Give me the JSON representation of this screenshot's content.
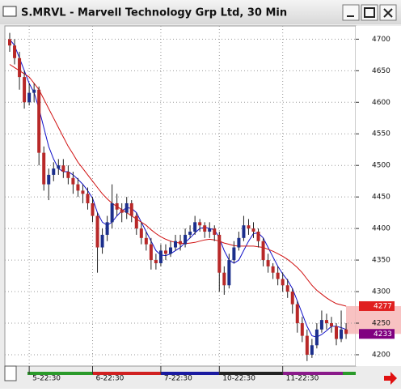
{
  "chart_data": {
    "type": "candlestick",
    "title": "S.MRVL - Marvell Technology Grp Ltd, 30 Min",
    "categories": [
      null,
      null,
      null,
      null,
      "5-22:30",
      null,
      null,
      null,
      null,
      null,
      null,
      null,
      null,
      null,
      null,
      null,
      null,
      "6-22:30",
      null,
      null,
      null,
      null,
      null,
      null,
      null,
      null,
      null,
      null,
      null,
      null,
      null,
      "7-22:30",
      null,
      null,
      null,
      null,
      null,
      null,
      null,
      null,
      null,
      null,
      null,
      "10-22:30",
      null,
      null,
      null,
      null,
      null,
      null,
      null,
      null,
      null,
      null,
      null,
      null,
      "11-22:30",
      null,
      null,
      null,
      null,
      null,
      null,
      null,
      null,
      null,
      null,
      null,
      null,
      null
    ],
    "open": [
      4700,
      4690,
      4670,
      4640,
      4600,
      4615,
      4620,
      4520,
      4470,
      4485,
      4495,
      4500,
      4490,
      4480,
      4470,
      4460,
      4455,
      4440,
      4420,
      4370,
      4390,
      4410,
      4440,
      4430,
      4425,
      4440,
      4420,
      4400,
      4385,
      4375,
      4350,
      4345,
      4365,
      4360,
      4370,
      4380,
      4375,
      4390,
      4395,
      4410,
      4405,
      4395,
      4400,
      4390,
      4330,
      4310,
      4350,
      4370,
      4385,
      4405,
      4400,
      4395,
      4380,
      4350,
      4340,
      4330,
      4320,
      4310,
      4300,
      4280,
      4250,
      4230,
      4200,
      4215,
      4240,
      4255,
      4250,
      4245,
      4225,
      4240
    ],
    "high": [
      4710,
      4700,
      4680,
      4650,
      4630,
      4630,
      4625,
      4530,
      4495,
      4505,
      4510,
      4510,
      4500,
      4490,
      4480,
      4470,
      4465,
      4450,
      4425,
      4400,
      4420,
      4470,
      4455,
      4440,
      4450,
      4445,
      4425,
      4410,
      4395,
      4385,
      4360,
      4375,
      4375,
      4380,
      4390,
      4390,
      4400,
      4405,
      4420,
      4415,
      4410,
      4410,
      4405,
      4395,
      4340,
      4360,
      4380,
      4395,
      4420,
      4415,
      4410,
      4400,
      4385,
      4360,
      4345,
      4340,
      4330,
      4320,
      4305,
      4285,
      4260,
      4240,
      4225,
      4250,
      4270,
      4265,
      4260,
      4250,
      4270,
      4250
    ],
    "low": [
      4680,
      4660,
      4620,
      4590,
      4595,
      4600,
      4500,
      4460,
      4445,
      4475,
      4485,
      4480,
      4470,
      4455,
      4450,
      4440,
      4430,
      4410,
      4330,
      4360,
      4380,
      4400,
      4420,
      4410,
      4415,
      4410,
      4390,
      4375,
      4365,
      4335,
      4335,
      4340,
      4350,
      4355,
      4365,
      4365,
      4370,
      4385,
      4390,
      4395,
      4385,
      4385,
      4380,
      4300,
      4295,
      4305,
      4345,
      4365,
      4380,
      4390,
      4385,
      4370,
      4340,
      4330,
      4320,
      4310,
      4300,
      4290,
      4265,
      4235,
      4220,
      4190,
      4195,
      4210,
      4235,
      4240,
      4235,
      4215,
      4220,
      4225
    ],
    "close": [
      4690,
      4670,
      4640,
      4600,
      4615,
      4620,
      4520,
      4470,
      4485,
      4495,
      4500,
      4490,
      4480,
      4470,
      4460,
      4455,
      4440,
      4420,
      4370,
      4390,
      4410,
      4440,
      4430,
      4425,
      4440,
      4420,
      4400,
      4385,
      4375,
      4350,
      4345,
      4365,
      4360,
      4370,
      4380,
      4375,
      4390,
      4395,
      4410,
      4405,
      4395,
      4400,
      4390,
      4330,
      4310,
      4350,
      4370,
      4385,
      4405,
      4400,
      4395,
      4380,
      4350,
      4340,
      4330,
      4320,
      4310,
      4300,
      4280,
      4250,
      4230,
      4200,
      4215,
      4240,
      4255,
      4250,
      4245,
      4225,
      4240,
      4233
    ],
    "up_color": "#1c2f8c",
    "down_color": "#b82828",
    "wick_color": "#222222",
    "lines": [
      {
        "color": "#1010c8",
        "values": [
          4700,
          4690,
          4670,
          4650,
          4630,
          4615,
          4590,
          4560,
          4530,
          4510,
          4495,
          4490,
          4490,
          4485,
          4478,
          4470,
          4460,
          4448,
          4425,
          4410,
          4405,
          4410,
          4420,
          4428,
          4433,
          4432,
          4425,
          4410,
          4395,
          4380,
          4365,
          4358,
          4357,
          4360,
          4365,
          4370,
          4378,
          4385,
          4393,
          4400,
          4402,
          4400,
          4398,
          4385,
          4365,
          4350,
          4345,
          4350,
          4365,
          4380,
          4392,
          4393,
          4385,
          4370,
          4355,
          4340,
          4328,
          4318,
          4305,
          4285,
          4265,
          4245,
          4230,
          4228,
          4232,
          4238,
          4245,
          4245,
          4243,
          4240
        ]
      },
      {
        "color": "#d01010",
        "values": [
          4660,
          4655,
          4650,
          4645,
          4640,
          4630,
          4620,
          4605,
          4590,
          4575,
          4560,
          4545,
          4530,
          4518,
          4505,
          4495,
          4485,
          4475,
          4465,
          4455,
          4447,
          4440,
          4435,
          4430,
          4425,
          4420,
          4415,
          4410,
          4405,
          4398,
          4392,
          4387,
          4383,
          4380,
          4378,
          4377,
          4376,
          4377,
          4378,
          4380,
          4382,
          4383,
          4382,
          4380,
          4377,
          4375,
          4373,
          4372,
          4372,
          4372,
          4372,
          4371,
          4370,
          4367,
          4364,
          4360,
          4356,
          4351,
          4345,
          4338,
          4330,
          4320,
          4310,
          4302,
          4296,
          4290,
          4285,
          4281,
          4279,
          4277
        ]
      }
    ],
    "price_tags": [
      {
        "value": 4277,
        "color": "#e02020"
      },
      {
        "value": 4233,
        "color": "#800080"
      }
    ],
    "ylim": [
      4182,
      4721
    ],
    "yticks": [
      4200,
      4250,
      4300,
      4350,
      4400,
      4450,
      4500,
      4550,
      4600,
      4650,
      4700
    ],
    "grid": true
  }
}
